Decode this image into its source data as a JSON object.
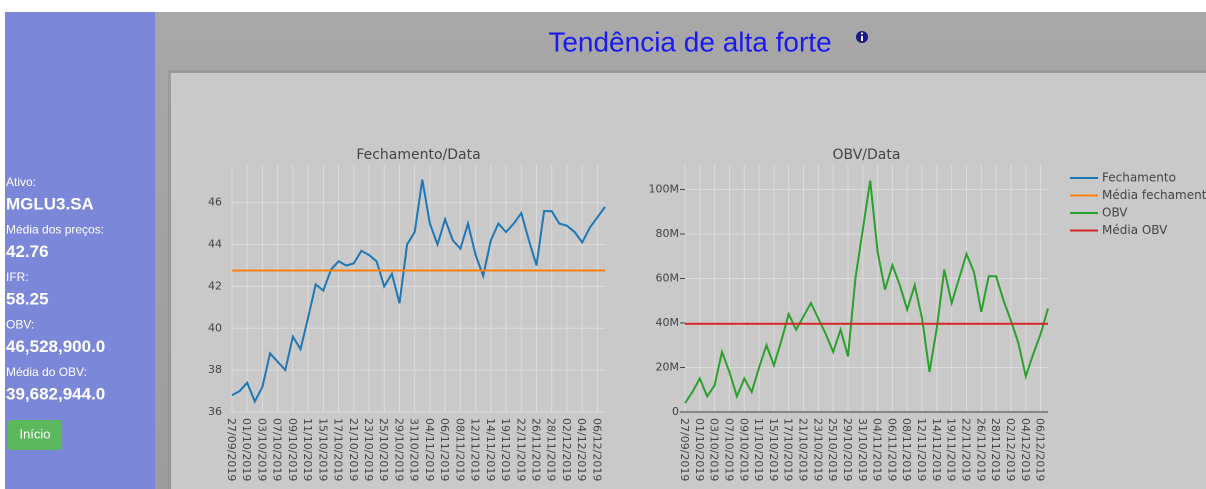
{
  "sidebar": {
    "items": [
      {
        "label": "Ativo:",
        "value": "MGLU3.SA"
      },
      {
        "label": "Média dos preços:",
        "value": "42.76"
      },
      {
        "label": "IFR:",
        "value": "58.25"
      },
      {
        "label": "OBV:",
        "value": "46,528,900.0"
      },
      {
        "label": "Média do OBV:",
        "value": "39,682,944.0"
      }
    ],
    "button": "Início"
  },
  "header": {
    "title": "Tendência de alta forte"
  },
  "chart_data": [
    {
      "type": "line",
      "title": "Fechamento/Data",
      "categories": [
        "27/09/2019",
        null,
        "01/10/2019",
        null,
        "03/10/2019",
        null,
        "07/10/2019",
        null,
        "09/10/2019",
        null,
        "11/10/2019",
        null,
        "15/10/2019",
        null,
        "17/10/2019",
        null,
        "21/10/2019",
        null,
        "23/10/2019",
        null,
        "25/10/2019",
        null,
        "29/10/2019",
        null,
        "31/10/2019",
        null,
        "04/11/2019",
        null,
        "06/11/2019",
        null,
        "08/11/2019",
        null,
        "12/11/2019",
        null,
        "14/11/2019",
        null,
        "19/11/2019",
        null,
        "22/11/2019",
        null,
        "26/11/2019",
        null,
        "28/11/2019",
        null,
        "02/12/2019",
        null,
        "04/12/2019",
        null,
        "06/12/2019",
        null
      ],
      "series": [
        {
          "name": "Fechamento",
          "color": "#1f77b4",
          "values": [
            36.8,
            37.0,
            37.4,
            36.5,
            37.2,
            38.8,
            38.4,
            38.0,
            39.6,
            39.0,
            40.5,
            42.1,
            41.8,
            42.8,
            43.2,
            43.0,
            43.1,
            43.7,
            43.5,
            43.2,
            42.0,
            42.6,
            41.2,
            44.0,
            44.6,
            47.1,
            45.0,
            44.0,
            45.2,
            44.2,
            43.8,
            45.0,
            43.5,
            42.5,
            44.2,
            45.0,
            44.6,
            45.0,
            45.5,
            44.2,
            43.0,
            45.6,
            45.6,
            45.0,
            44.9,
            44.6,
            44.1,
            44.8,
            45.3,
            45.8
          ]
        },
        {
          "name": "Média fechamento",
          "color": "#ff7f0e",
          "values": [
            42.76,
            42.76,
            42.76,
            42.76,
            42.76,
            42.76,
            42.76,
            42.76,
            42.76,
            42.76,
            42.76,
            42.76,
            42.76,
            42.76,
            42.76,
            42.76,
            42.76,
            42.76,
            42.76,
            42.76,
            42.76,
            42.76,
            42.76,
            42.76,
            42.76,
            42.76,
            42.76,
            42.76,
            42.76,
            42.76,
            42.76,
            42.76,
            42.76,
            42.76,
            42.76,
            42.76,
            42.76,
            42.76,
            42.76,
            42.76,
            42.76,
            42.76,
            42.76,
            42.76,
            42.76,
            42.76,
            42.76,
            42.76,
            42.76,
            42.76
          ]
        }
      ],
      "ylim": [
        36,
        47.8
      ],
      "yticks": [
        36,
        38,
        40,
        42,
        44,
        46
      ],
      "grid": true
    },
    {
      "type": "line",
      "title": "OBV/Data",
      "categories": [
        "27/09/2019",
        null,
        "01/10/2019",
        null,
        "03/10/2019",
        null,
        "07/10/2019",
        null,
        "09/10/2019",
        null,
        "11/10/2019",
        null,
        "15/10/2019",
        null,
        "17/10/2019",
        null,
        "21/10/2019",
        null,
        "23/10/2019",
        null,
        "25/10/2019",
        null,
        "29/10/2019",
        null,
        "31/10/2019",
        null,
        "04/11/2019",
        null,
        "06/11/2019",
        null,
        "08/11/2019",
        null,
        "12/11/2019",
        null,
        "14/11/2019",
        null,
        "19/11/2019",
        null,
        "22/11/2019",
        null,
        "26/11/2019",
        null,
        "28/11/2019",
        null,
        "02/12/2019",
        null,
        "04/12/2019",
        null,
        "06/12/2019",
        null
      ],
      "series": [
        {
          "name": "OBV",
          "color": "#2ca02c",
          "values": [
            4000000,
            9000000,
            15000000,
            7000000,
            12000000,
            27000000,
            18000000,
            7000000,
            15000000,
            9000000,
            20000000,
            30000000,
            21000000,
            32000000,
            44000000,
            37000000,
            43000000,
            49000000,
            42000000,
            35000000,
            27000000,
            37000000,
            25000000,
            60000000,
            82000000,
            104000000,
            72000000,
            55000000,
            66000000,
            57000000,
            46000000,
            57000000,
            42000000,
            18000000,
            38000000,
            64000000,
            49000000,
            60000000,
            71000000,
            63000000,
            45000000,
            61000000,
            61000000,
            50000000,
            41000000,
            31000000,
            16000000,
            26000000,
            35000000,
            46528900
          ]
        },
        {
          "name": "Média OBV",
          "color": "#d62728",
          "values": [
            39682944,
            39682944,
            39682944,
            39682944,
            39682944,
            39682944,
            39682944,
            39682944,
            39682944,
            39682944,
            39682944,
            39682944,
            39682944,
            39682944,
            39682944,
            39682944,
            39682944,
            39682944,
            39682944,
            39682944,
            39682944,
            39682944,
            39682944,
            39682944,
            39682944,
            39682944,
            39682944,
            39682944,
            39682944,
            39682944,
            39682944,
            39682944,
            39682944,
            39682944,
            39682944,
            39682944,
            39682944,
            39682944,
            39682944,
            39682944,
            39682944,
            39682944,
            39682944,
            39682944,
            39682944,
            39682944,
            39682944,
            39682944,
            39682944,
            39682944
          ]
        }
      ],
      "ylim": [
        0,
        111000000
      ],
      "yticks": [
        0,
        {
          "value": 20000000,
          "label": "20M"
        },
        {
          "value": 40000000,
          "label": "40M"
        },
        {
          "value": 60000000,
          "label": "60M"
        },
        {
          "value": 80000000,
          "label": "80M"
        },
        {
          "value": 100000000,
          "label": "100M"
        }
      ],
      "grid": true,
      "x_axis_line": true
    }
  ]
}
